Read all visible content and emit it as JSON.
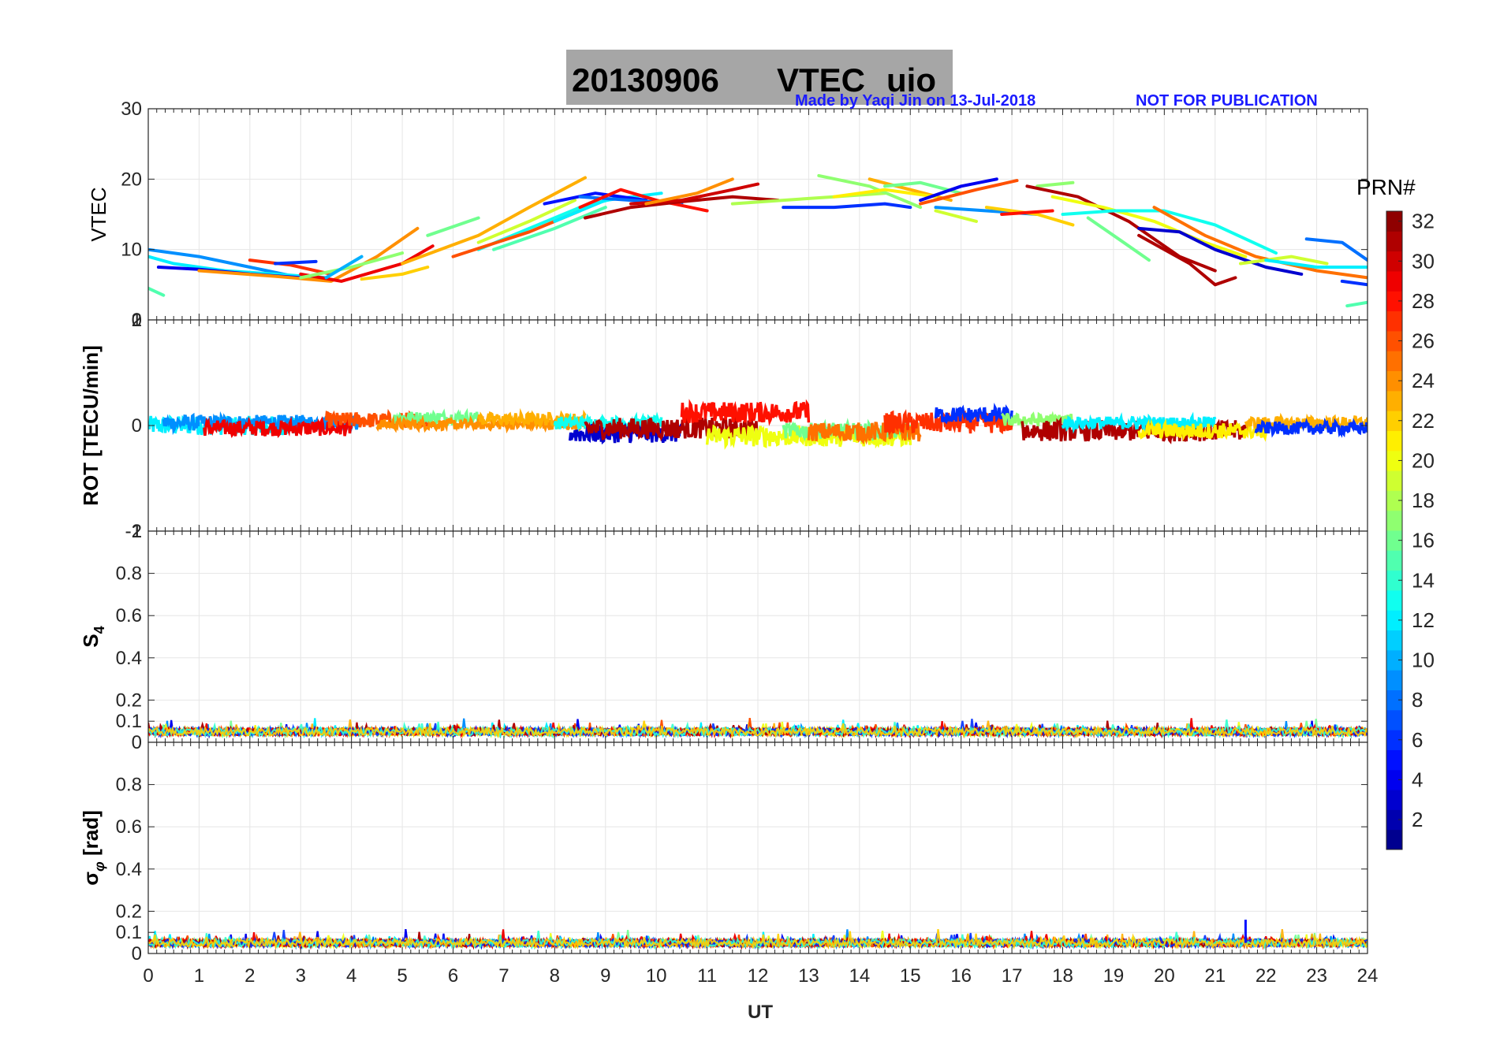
{
  "title": {
    "date": "20130906",
    "label": "VTEC",
    "station": "uio",
    "box_color": "#a6a6a6"
  },
  "credit": {
    "made_by": "Made by Yaqi Jin on 13-Jul-2018",
    "notice": "NOT FOR PUBLICATION",
    "color": "#1a1aff"
  },
  "chart_data": {
    "type": "line",
    "xlabel": "UT",
    "xlim": [
      0,
      24
    ],
    "x_ticks": [
      "0",
      "1",
      "2",
      "3",
      "4",
      "5",
      "6",
      "7",
      "8",
      "9",
      "10",
      "11",
      "12",
      "13",
      "14",
      "15",
      "16",
      "17",
      "18",
      "19",
      "20",
      "21",
      "22",
      "23",
      "24"
    ],
    "grid": true,
    "panels": [
      {
        "id": "vtec",
        "ylabel": "VTEC",
        "ylim": [
          0,
          30
        ],
        "y_ticks": [
          {
            "value": 0,
            "label": "0"
          },
          {
            "value": 10,
            "label": "10"
          },
          {
            "value": 20,
            "label": "20"
          },
          {
            "value": 30,
            "label": "30"
          }
        ],
        "series": [
          {
            "prn": 9,
            "x": [
              0.0,
              1.0,
              2.0,
              3.0,
              3.5
            ],
            "y": [
              10.0,
              9.0,
              7.5,
              6.0,
              5.8
            ]
          },
          {
            "prn": 12,
            "x": [
              0.0,
              0.5,
              1.5,
              2.5,
              3.5
            ],
            "y": [
              9.0,
              8.0,
              7.0,
              6.5,
              6.0
            ]
          },
          {
            "prn": 4,
            "x": [
              0.2,
              1.0,
              2.0,
              3.0
            ],
            "y": [
              7.5,
              7.2,
              6.5,
              6.0
            ]
          },
          {
            "prn": 15,
            "x": [
              0.0,
              0.3
            ],
            "y": [
              4.5,
              3.5
            ]
          },
          {
            "prn": 27,
            "x": [
              2.0,
              2.8,
              3.6
            ],
            "y": [
              8.5,
              7.8,
              6.5
            ]
          },
          {
            "prn": 6,
            "x": [
              2.5,
              3.3
            ],
            "y": [
              8.0,
              8.3
            ]
          },
          {
            "prn": 24,
            "x": [
              1.0,
              2.5,
              3.6,
              4.5,
              5.3
            ],
            "y": [
              7.0,
              6.2,
              5.5,
              9.0,
              13.0
            ]
          },
          {
            "prn": 29,
            "x": [
              3.0,
              3.8,
              5.0,
              5.6
            ],
            "y": [
              6.5,
              5.5,
              8.0,
              10.5
            ]
          },
          {
            "prn": 17,
            "x": [
              3.0,
              4.0,
              5.0
            ],
            "y": [
              6.0,
              7.5,
              9.5
            ]
          },
          {
            "prn": 10,
            "x": [
              3.5,
              4.2
            ],
            "y": [
              6.0,
              9.0
            ]
          },
          {
            "prn": 22,
            "x": [
              4.2,
              5.0,
              5.5
            ],
            "y": [
              5.8,
              6.5,
              7.5
            ]
          },
          {
            "prn": 16,
            "x": [
              5.5,
              6.5
            ],
            "y": [
              12.0,
              14.5
            ]
          },
          {
            "prn": 23,
            "x": [
              5.0,
              6.5,
              7.5,
              8.6
            ],
            "y": [
              8.0,
              12.0,
              16.0,
              20.2
            ]
          },
          {
            "prn": 19,
            "x": [
              6.5,
              7.5,
              8.4
            ],
            "y": [
              11.0,
              14.0,
              17.0
            ]
          },
          {
            "prn": 13,
            "x": [
              6.5,
              7.5,
              8.5,
              9.3
            ],
            "y": [
              10.0,
              13.0,
              16.0,
              17.5
            ]
          },
          {
            "prn": 26,
            "x": [
              6.0,
              7.5,
              8.5
            ],
            "y": [
              9.0,
              12.5,
              15.5
            ]
          },
          {
            "prn": 15,
            "x": [
              6.8,
              8.0,
              9.0
            ],
            "y": [
              10.0,
              13.0,
              16.0
            ]
          },
          {
            "prn": 12,
            "x": [
              8.0,
              9.0,
              10.1
            ],
            "y": [
              14.0,
              17.0,
              18.0
            ]
          },
          {
            "prn": 5,
            "x": [
              7.8,
              8.8,
              9.8
            ],
            "y": [
              16.5,
              18.0,
              17.0
            ]
          },
          {
            "prn": 8,
            "x": [
              8.5,
              9.5,
              10.5
            ],
            "y": [
              17.5,
              17.0,
              16.5
            ]
          },
          {
            "prn": 28,
            "x": [
              8.5,
              9.3,
              10.0,
              11.0
            ],
            "y": [
              16.0,
              18.5,
              17.0,
              15.5
            ]
          },
          {
            "prn": 31,
            "x": [
              8.6,
              9.5,
              10.5,
              11.5,
              12.4
            ],
            "y": [
              14.5,
              16.0,
              16.8,
              17.5,
              17.0
            ]
          },
          {
            "prn": 30,
            "x": [
              9.5,
              10.5,
              11.5,
              12.0
            ],
            "y": [
              16.5,
              17.0,
              18.5,
              19.3
            ]
          },
          {
            "prn": 24,
            "x": [
              9.8,
              10.8,
              11.5
            ],
            "y": [
              16.5,
              18.0,
              20.0
            ]
          },
          {
            "prn": 18,
            "x": [
              11.5,
              12.5,
              13.5,
              14.5
            ],
            "y": [
              16.5,
              17.0,
              17.5,
              18.0
            ]
          },
          {
            "prn": 6,
            "x": [
              12.5,
              13.5,
              14.5,
              15.0
            ],
            "y": [
              16.0,
              16.0,
              16.5,
              16.0
            ]
          },
          {
            "prn": 17,
            "x": [
              13.2,
              14.2,
              15.2
            ],
            "y": [
              20.5,
              19.0,
              16.0
            ]
          },
          {
            "prn": 23,
            "x": [
              14.2,
              15.0,
              15.8
            ],
            "y": [
              20.0,
              18.5,
              17.0
            ]
          },
          {
            "prn": 16,
            "x": [
              14.5,
              15.2,
              16.0
            ],
            "y": [
              19.0,
              19.5,
              18.0
            ]
          },
          {
            "prn": 21,
            "x": [
              13.5,
              14.5,
              15.5
            ],
            "y": [
              17.5,
              18.5,
              17.5
            ]
          },
          {
            "prn": 4,
            "x": [
              15.2,
              16.0,
              16.7
            ],
            "y": [
              17.0,
              19.0,
              20.0
            ]
          },
          {
            "prn": 26,
            "x": [
              15.2,
              16.3,
              17.1
            ],
            "y": [
              16.5,
              18.5,
              19.8
            ]
          },
          {
            "prn": 9,
            "x": [
              15.5,
              16.5,
              17.5
            ],
            "y": [
              16.0,
              15.5,
              15.0
            ]
          },
          {
            "prn": 19,
            "x": [
              15.5,
              16.3
            ],
            "y": [
              15.5,
              14.0
            ]
          },
          {
            "prn": 22,
            "x": [
              16.5,
              17.5,
              18.2
            ],
            "y": [
              16.0,
              15.0,
              13.5
            ]
          },
          {
            "prn": 28,
            "x": [
              16.8,
              17.8
            ],
            "y": [
              15.0,
              15.5
            ]
          },
          {
            "prn": 17,
            "x": [
              17.5,
              18.2
            ],
            "y": [
              19.0,
              19.5
            ]
          },
          {
            "prn": 31,
            "x": [
              17.3,
              18.3,
              19.3,
              20.3,
              21.0
            ],
            "y": [
              19.0,
              17.5,
              14.0,
              9.0,
              7.0
            ]
          },
          {
            "prn": 31,
            "x": [
              19.5,
              20.5,
              21.0,
              21.4
            ],
            "y": [
              12.0,
              8.0,
              5.0,
              6.0
            ]
          },
          {
            "prn": 20,
            "x": [
              17.8,
              18.8,
              19.8,
              20.8,
              21.6
            ],
            "y": [
              17.5,
              16.0,
              14.0,
              11.0,
              9.0
            ]
          },
          {
            "prn": 13,
            "x": [
              18.0,
              19.0,
              20.0,
              21.0,
              22.2
            ],
            "y": [
              15.0,
              15.5,
              15.5,
              13.5,
              9.5
            ]
          },
          {
            "prn": 16,
            "x": [
              18.5,
              19.2,
              19.7
            ],
            "y": [
              14.5,
              11.0,
              8.5
            ]
          },
          {
            "prn": 3,
            "x": [
              19.5,
              20.3,
              21.0,
              22.0,
              22.7
            ],
            "y": [
              13.0,
              12.5,
              10.0,
              7.5,
              6.5
            ]
          },
          {
            "prn": 25,
            "x": [
              19.8,
              20.8,
              21.8,
              23.0,
              24.0
            ],
            "y": [
              16.0,
              12.0,
              9.0,
              7.0,
              6.0
            ]
          },
          {
            "prn": 19,
            "x": [
              21.5,
              22.5,
              23.2
            ],
            "y": [
              8.0,
              9.0,
              8.0
            ]
          },
          {
            "prn": 8,
            "x": [
              22.8,
              23.5,
              24.0
            ],
            "y": [
              11.5,
              11.0,
              8.5
            ]
          },
          {
            "prn": 12,
            "x": [
              22.0,
              23.0,
              24.0
            ],
            "y": [
              8.5,
              7.5,
              7.5
            ]
          },
          {
            "prn": 6,
            "x": [
              23.5,
              24.0
            ],
            "y": [
              5.5,
              5.0
            ]
          },
          {
            "prn": 15,
            "x": [
              23.6,
              24.0
            ],
            "y": [
              2.0,
              2.5
            ]
          }
        ]
      },
      {
        "id": "rot",
        "ylabel": "ROT [TECU/min]",
        "ylim": [
          -2,
          2
        ],
        "y_ticks": [
          {
            "value": -2,
            "label": "-2"
          },
          {
            "value": 0,
            "label": "0"
          },
          {
            "value": 2,
            "label": "2"
          }
        ],
        "overlap_labels": [
          "-1",
          "1"
        ],
        "segments": [
          {
            "prn": 12,
            "x0": 0.0,
            "x1": 3.0,
            "base": 0.0,
            "amp": 0.18
          },
          {
            "prn": 9,
            "x0": 0.3,
            "x1": 4.2,
            "base": 0.05,
            "amp": 0.15
          },
          {
            "prn": 29,
            "x0": 1.1,
            "x1": 4.0,
            "base": -0.05,
            "amp": 0.15
          },
          {
            "prn": 26,
            "x0": 3.5,
            "x1": 5.5,
            "base": 0.1,
            "amp": 0.15
          },
          {
            "prn": 16,
            "x0": 4.8,
            "x1": 6.5,
            "base": 0.15,
            "amp": 0.12
          },
          {
            "prn": 24,
            "x0": 4.5,
            "x1": 8.6,
            "base": 0.02,
            "amp": 0.1
          },
          {
            "prn": 23,
            "x0": 6.5,
            "x1": 8.6,
            "base": 0.12,
            "amp": 0.12
          },
          {
            "prn": 13,
            "x0": 8.0,
            "x1": 10.1,
            "base": 0.05,
            "amp": 0.12
          },
          {
            "prn": 3,
            "x0": 8.3,
            "x1": 10.5,
            "base": -0.15,
            "amp": 0.18
          },
          {
            "prn": 31,
            "x0": 8.6,
            "x1": 12.0,
            "base": -0.05,
            "amp": 0.2
          },
          {
            "prn": 28,
            "x0": 10.5,
            "x1": 13.0,
            "base": 0.25,
            "amp": 0.2
          },
          {
            "prn": 20,
            "x0": 11.0,
            "x1": 15.0,
            "base": -0.2,
            "amp": 0.2
          },
          {
            "prn": 16,
            "x0": 12.5,
            "x1": 15.0,
            "base": -0.1,
            "amp": 0.15
          },
          {
            "prn": 25,
            "x0": 13.0,
            "x1": 15.2,
            "base": -0.12,
            "amp": 0.18
          },
          {
            "prn": 27,
            "x0": 14.5,
            "x1": 17.0,
            "base": 0.05,
            "amp": 0.2
          },
          {
            "prn": 6,
            "x0": 15.5,
            "x1": 17.0,
            "base": 0.2,
            "amp": 0.15
          },
          {
            "prn": 17,
            "x0": 16.8,
            "x1": 18.2,
            "base": 0.1,
            "amp": 0.12
          },
          {
            "prn": 31,
            "x0": 17.2,
            "x1": 21.6,
            "base": -0.1,
            "amp": 0.2
          },
          {
            "prn": 12,
            "x0": 18.0,
            "x1": 21.0,
            "base": 0.05,
            "amp": 0.12
          },
          {
            "prn": 21,
            "x0": 19.5,
            "x1": 22.0,
            "base": -0.1,
            "amp": 0.15
          },
          {
            "prn": 23,
            "x0": 21.6,
            "x1": 24.0,
            "base": 0.05,
            "amp": 0.12
          },
          {
            "prn": 6,
            "x0": 21.8,
            "x1": 24.0,
            "base": -0.05,
            "amp": 0.12
          }
        ]
      },
      {
        "id": "s4",
        "ylabel": "S4",
        "ylim": [
          0,
          1
        ],
        "y_ticks": [
          {
            "value": 0,
            "label": "0"
          },
          {
            "value": 0.1,
            "label": "0.1"
          },
          {
            "value": 0.2,
            "label": "0.2"
          },
          {
            "value": 0.4,
            "label": "0.4"
          },
          {
            "value": 0.6,
            "label": "0.6"
          },
          {
            "value": 0.8,
            "label": "0.8"
          }
        ],
        "overlap_labels": [
          "1"
        ],
        "noise_level": 0.05
      },
      {
        "id": "sigma_phi",
        "ylabel": "σφ [rad]",
        "ylim": [
          0,
          1
        ],
        "y_ticks": [
          {
            "value": 0,
            "label": "0"
          },
          {
            "value": 0.1,
            "label": "0.1"
          },
          {
            "value": 0.2,
            "label": "0.2"
          },
          {
            "value": 0.4,
            "label": "0.4"
          },
          {
            "value": 0.6,
            "label": "0.6"
          },
          {
            "value": 0.8,
            "label": "0.8"
          }
        ],
        "noise_level": 0.05,
        "spike": {
          "x": 21.6,
          "y": 0.16
        }
      }
    ],
    "colorbar": {
      "label": "PRN#",
      "range": [
        1,
        32
      ],
      "ticks": [
        "2",
        "4",
        "6",
        "8",
        "10",
        "12",
        "14",
        "16",
        "18",
        "20",
        "22",
        "24",
        "26",
        "28",
        "30",
        "32"
      ]
    }
  }
}
